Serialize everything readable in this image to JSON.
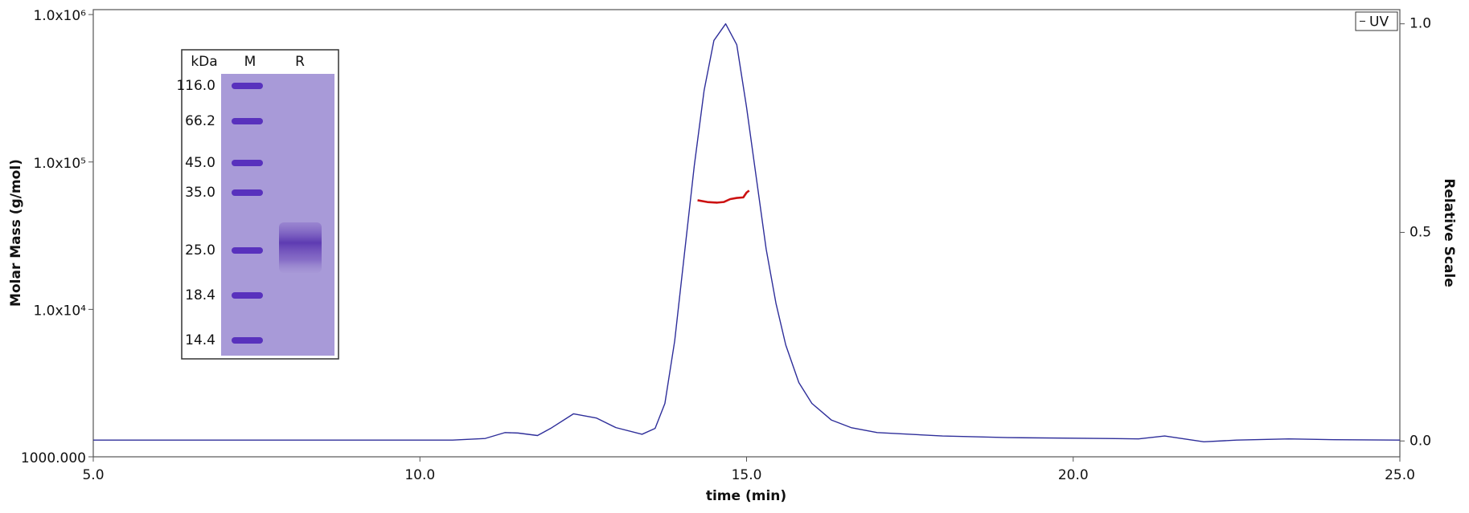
{
  "chart_data": {
    "type": "line",
    "xlabel": "time (min)",
    "ylabel": "Molar Mass (g/mol)",
    "y2label": "Relative Scale",
    "yscale": "log",
    "xlim": [
      5,
      25
    ],
    "xticks": [
      {
        "value": 5,
        "label": "5.0"
      },
      {
        "value": 10,
        "label": "10.0"
      },
      {
        "value": 15,
        "label": "15.0"
      },
      {
        "value": 20,
        "label": "20.0"
      },
      {
        "value": 25,
        "label": "25.0"
      }
    ],
    "ylim": [
      1000,
      1080000
    ],
    "yticks": [
      {
        "value": 1000,
        "label": "1000.000"
      },
      {
        "value": 10000,
        "label": "1.0x10⁴"
      },
      {
        "value": 100000,
        "label": "1.0x10⁵"
      },
      {
        "value": 1000000,
        "label": "1.0x10⁶"
      }
    ],
    "y2lim": [
      -0.038,
      1.034
    ],
    "y2ticks": [
      {
        "value": 0,
        "label": "0.0"
      },
      0.5,
      {
        "value": 1,
        "label": "1.0"
      }
    ],
    "legend": "upper right",
    "series": [
      {
        "name": "UV",
        "color": "#2e2e9a",
        "axis": "y2",
        "x": [
          5.0,
          8.0,
          10.5,
          11.0,
          11.3,
          11.5,
          11.8,
          12.0,
          12.35,
          12.7,
          13.0,
          13.4,
          13.6,
          13.75,
          13.9,
          14.05,
          14.2,
          14.35,
          14.5,
          14.68,
          14.85,
          15.0,
          15.15,
          15.3,
          15.45,
          15.6,
          15.8,
          16.0,
          16.3,
          16.6,
          17.0,
          18.0,
          19.0,
          20.5,
          21.0,
          21.4,
          21.7,
          22.0,
          22.5,
          23.3,
          24.0,
          25.0
        ],
        "values": [
          0.002,
          0.002,
          0.002,
          0.006,
          0.02,
          0.019,
          0.013,
          0.03,
          0.065,
          0.055,
          0.032,
          0.016,
          0.03,
          0.09,
          0.24,
          0.45,
          0.66,
          0.84,
          0.96,
          1.0,
          0.95,
          0.8,
          0.63,
          0.46,
          0.33,
          0.23,
          0.14,
          0.09,
          0.05,
          0.032,
          0.02,
          0.012,
          0.008,
          0.006,
          0.005,
          0.012,
          0.005,
          -0.002,
          0.002,
          0.005,
          0.003,
          0.002
        ]
      },
      {
        "color": "#cc1111",
        "axis": "y",
        "x": [
          14.25,
          14.4,
          14.55,
          14.65,
          14.75,
          14.85,
          14.95,
          15.0,
          15.04
        ],
        "values": [
          55000,
          53500,
          53000,
          53500,
          56000,
          57000,
          57500,
          62000,
          64000
        ]
      }
    ],
    "inset": {
      "headers": [
        "kDa",
        "M",
        "R"
      ],
      "markers": [
        "116.0",
        "66.2",
        "45.0",
        "35.0",
        "25.0",
        "18.4",
        "14.4"
      ]
    }
  }
}
